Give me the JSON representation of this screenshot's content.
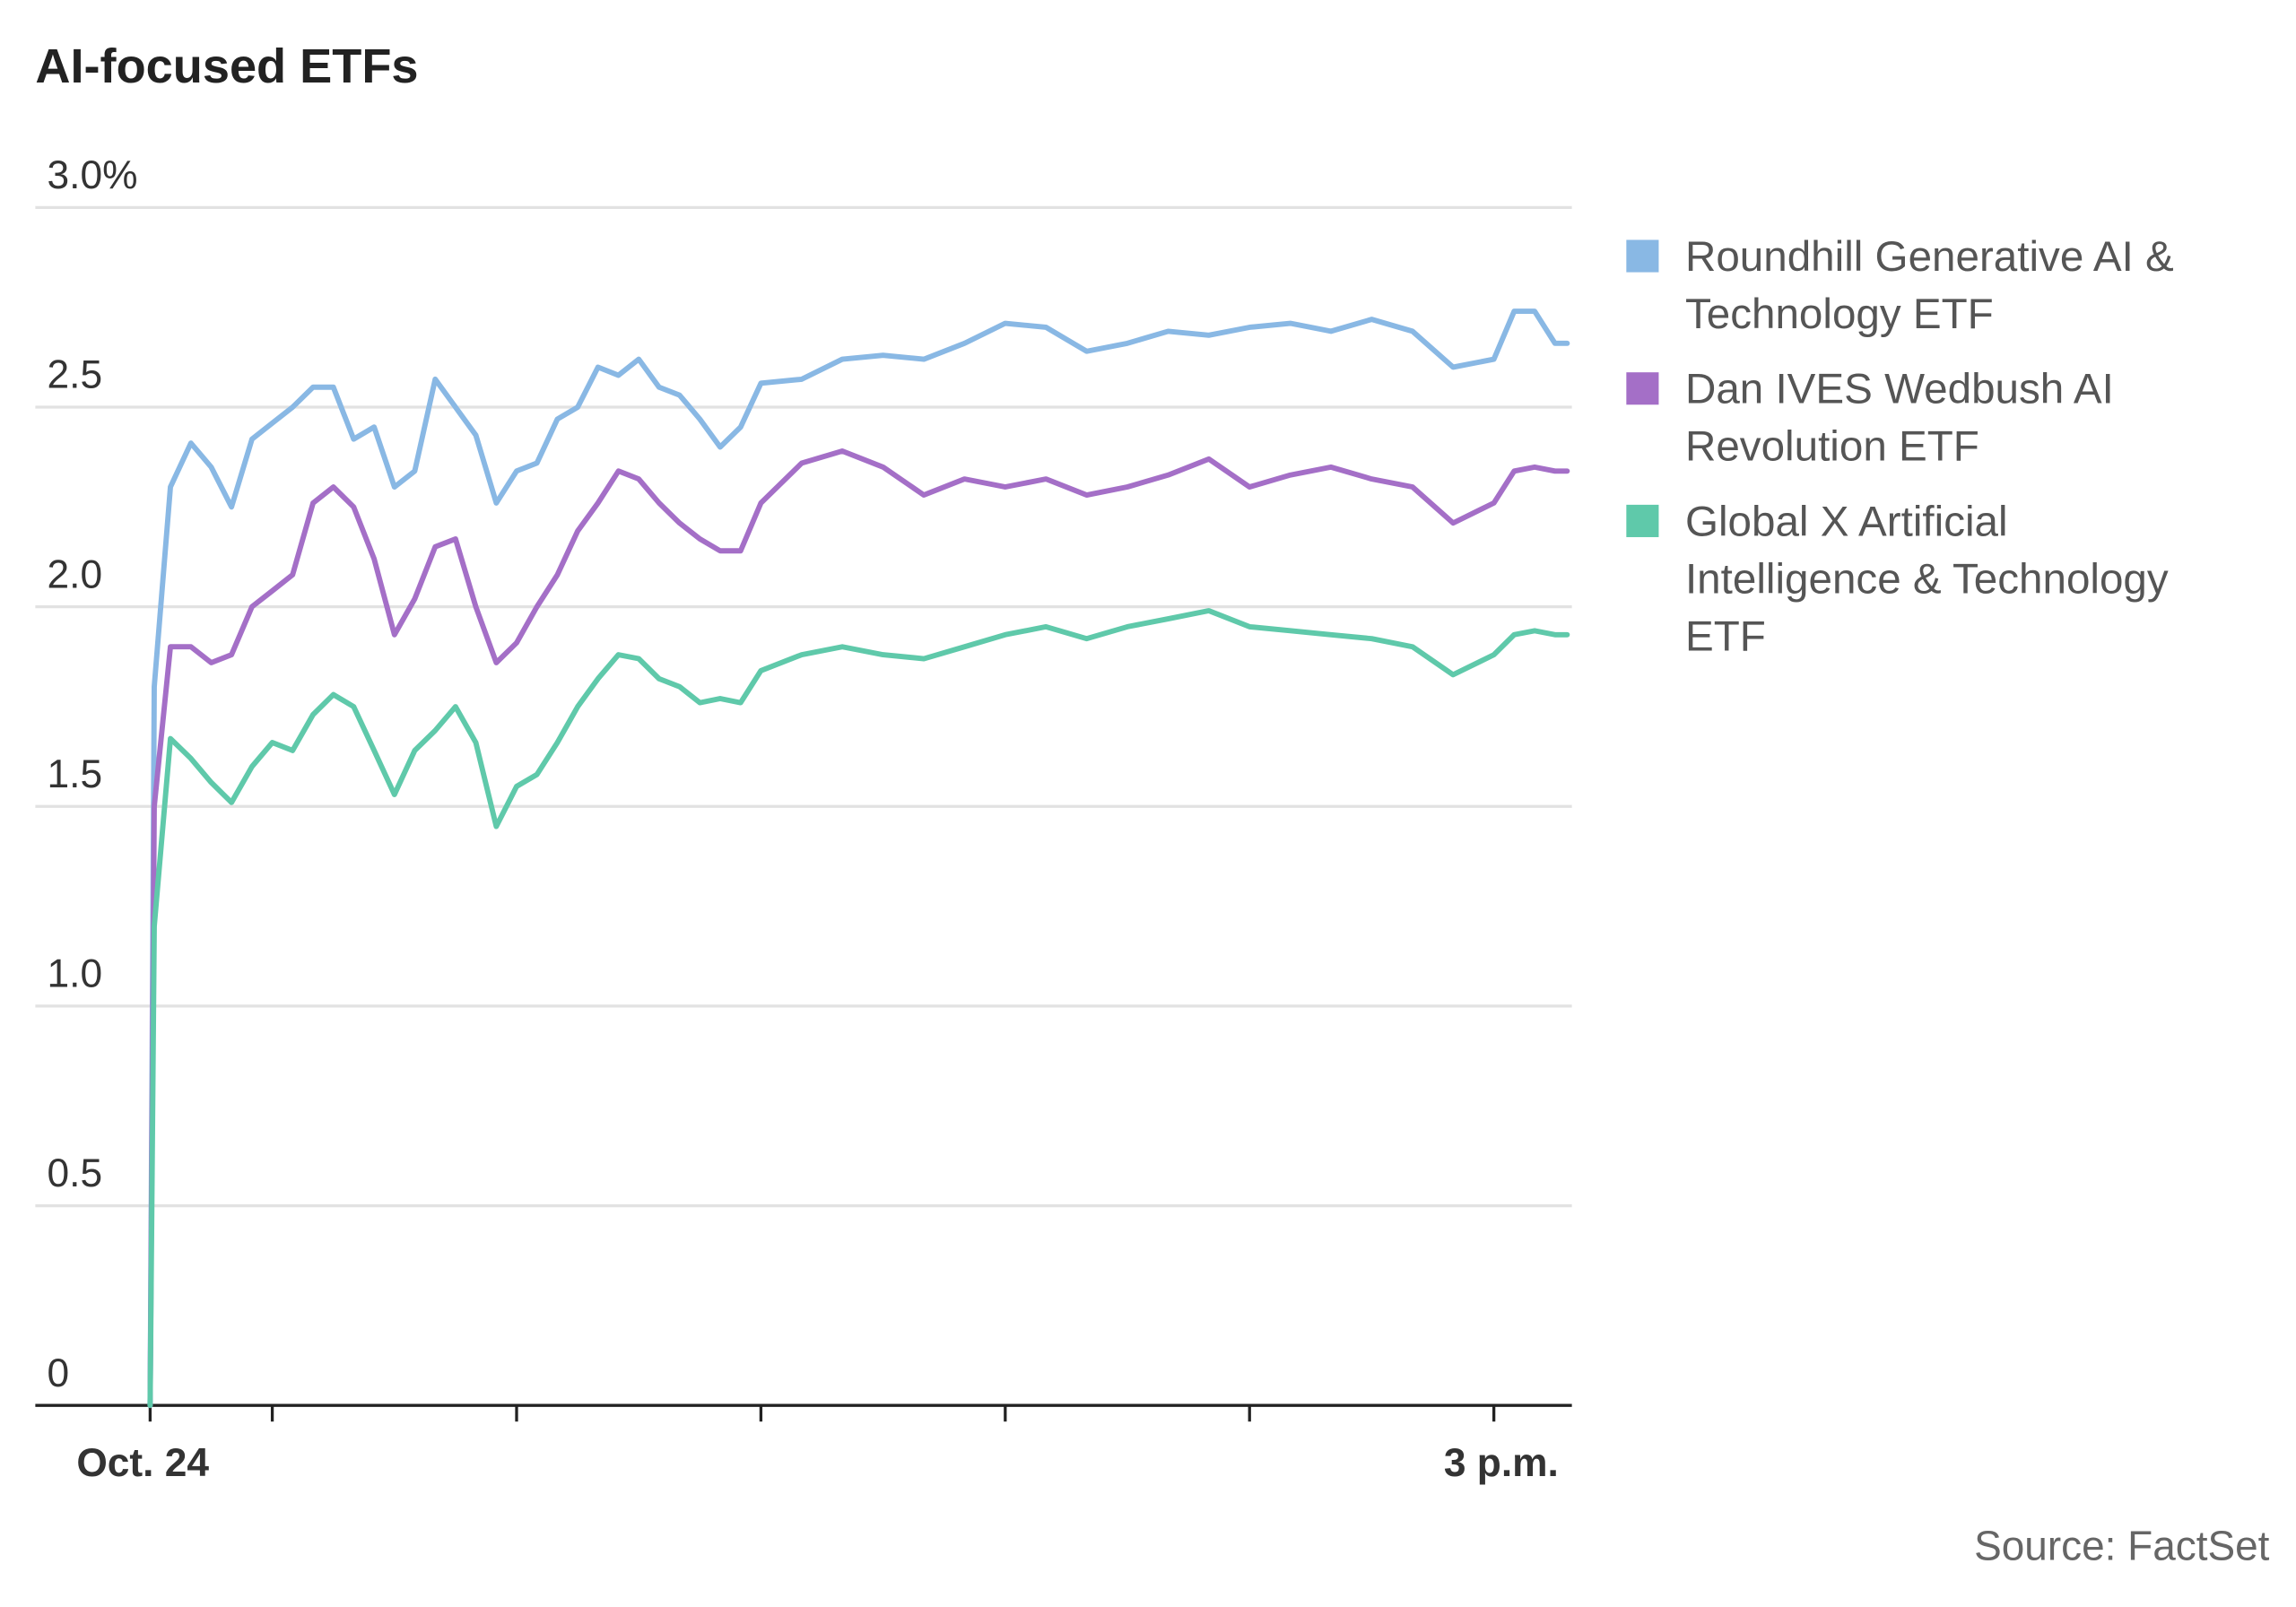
{
  "chart_data": {
    "type": "line",
    "title": "AI-focused ETFs",
    "source": "Source: FactSet",
    "xlabel": "",
    "ylabel": "",
    "y_ticks": [
      "0",
      "0.5",
      "1.0",
      "1.5",
      "2.0",
      "2.5",
      "3.0%"
    ],
    "y_tick_values": [
      0,
      0.5,
      1.0,
      1.5,
      2.0,
      2.5,
      3.0
    ],
    "ylim": [
      0,
      3.0
    ],
    "x_tick_labels": [
      {
        "time": "9:30",
        "label": "Oct. 24"
      },
      {
        "time": "15:00",
        "label": "3 p.m."
      }
    ],
    "x_minor_ticks": [
      "10:00",
      "11:00",
      "12:00",
      "13:00",
      "14:00"
    ],
    "xlim": [
      "9:30",
      "15:18"
    ],
    "grid": true,
    "legend_position": "right",
    "x": [
      "9:30",
      "9:31",
      "9:35",
      "9:40",
      "9:45",
      "9:50",
      "9:55",
      "10:00",
      "10:05",
      "10:10",
      "10:15",
      "10:20",
      "10:25",
      "10:30",
      "10:35",
      "10:40",
      "10:45",
      "10:50",
      "10:55",
      "11:00",
      "11:05",
      "11:10",
      "11:15",
      "11:20",
      "11:25",
      "11:30",
      "11:35",
      "11:40",
      "11:45",
      "11:50",
      "11:55",
      "12:00",
      "12:10",
      "12:20",
      "12:30",
      "12:40",
      "12:50",
      "13:00",
      "13:10",
      "13:20",
      "13:30",
      "13:40",
      "13:50",
      "14:00",
      "14:10",
      "14:20",
      "14:30",
      "14:40",
      "14:50",
      "15:00",
      "15:05",
      "15:10",
      "15:15",
      "15:18"
    ],
    "series": [
      {
        "name": "Roundhill Generative AI & Technology ETF",
        "name_lines": [
          "Roundhill Generative AI &",
          "Technology ETF"
        ],
        "color": "#89b8e4",
        "values": [
          0,
          1.8,
          2.3,
          2.41,
          2.35,
          2.25,
          2.42,
          2.46,
          2.5,
          2.55,
          2.55,
          2.42,
          2.45,
          2.3,
          2.34,
          2.57,
          2.5,
          2.43,
          2.26,
          2.34,
          2.36,
          2.47,
          2.5,
          2.6,
          2.58,
          2.62,
          2.55,
          2.53,
          2.47,
          2.4,
          2.45,
          2.56,
          2.57,
          2.62,
          2.63,
          2.62,
          2.66,
          2.71,
          2.7,
          2.64,
          2.66,
          2.69,
          2.68,
          2.7,
          2.71,
          2.69,
          2.72,
          2.69,
          2.6,
          2.62,
          2.74,
          2.74,
          2.66,
          2.66
        ]
      },
      {
        "name": "Dan IVES Wedbush AI Revolution ETF",
        "name_lines": [
          "Dan IVES Wedbush AI",
          "Revolution ETF"
        ],
        "color": "#a46fc7",
        "values": [
          0,
          1.5,
          1.9,
          1.9,
          1.86,
          1.88,
          2.0,
          2.04,
          2.08,
          2.26,
          2.3,
          2.25,
          2.12,
          1.93,
          2.02,
          2.15,
          2.17,
          2.0,
          1.86,
          1.91,
          2.0,
          2.08,
          2.19,
          2.26,
          2.34,
          2.32,
          2.26,
          2.21,
          2.17,
          2.14,
          2.14,
          2.26,
          2.36,
          2.39,
          2.35,
          2.28,
          2.32,
          2.3,
          2.32,
          2.28,
          2.3,
          2.33,
          2.37,
          2.3,
          2.33,
          2.35,
          2.32,
          2.3,
          2.21,
          2.26,
          2.34,
          2.35,
          2.34,
          2.34
        ]
      },
      {
        "name": "Global X Artificial Intelligence & Technology ETF",
        "name_lines": [
          "Global X Artificial",
          "Intelligence & Technology",
          "ETF"
        ],
        "color": "#5fc9aa",
        "values": [
          0,
          1.2,
          1.67,
          1.62,
          1.56,
          1.51,
          1.6,
          1.66,
          1.64,
          1.73,
          1.78,
          1.75,
          1.64,
          1.53,
          1.64,
          1.69,
          1.75,
          1.66,
          1.45,
          1.55,
          1.58,
          1.66,
          1.75,
          1.82,
          1.88,
          1.87,
          1.82,
          1.8,
          1.76,
          1.77,
          1.76,
          1.84,
          1.88,
          1.9,
          1.88,
          1.87,
          1.9,
          1.93,
          1.95,
          1.92,
          1.95,
          1.97,
          1.99,
          1.95,
          1.94,
          1.93,
          1.92,
          1.9,
          1.83,
          1.88,
          1.93,
          1.94,
          1.93,
          1.93
        ]
      }
    ]
  }
}
